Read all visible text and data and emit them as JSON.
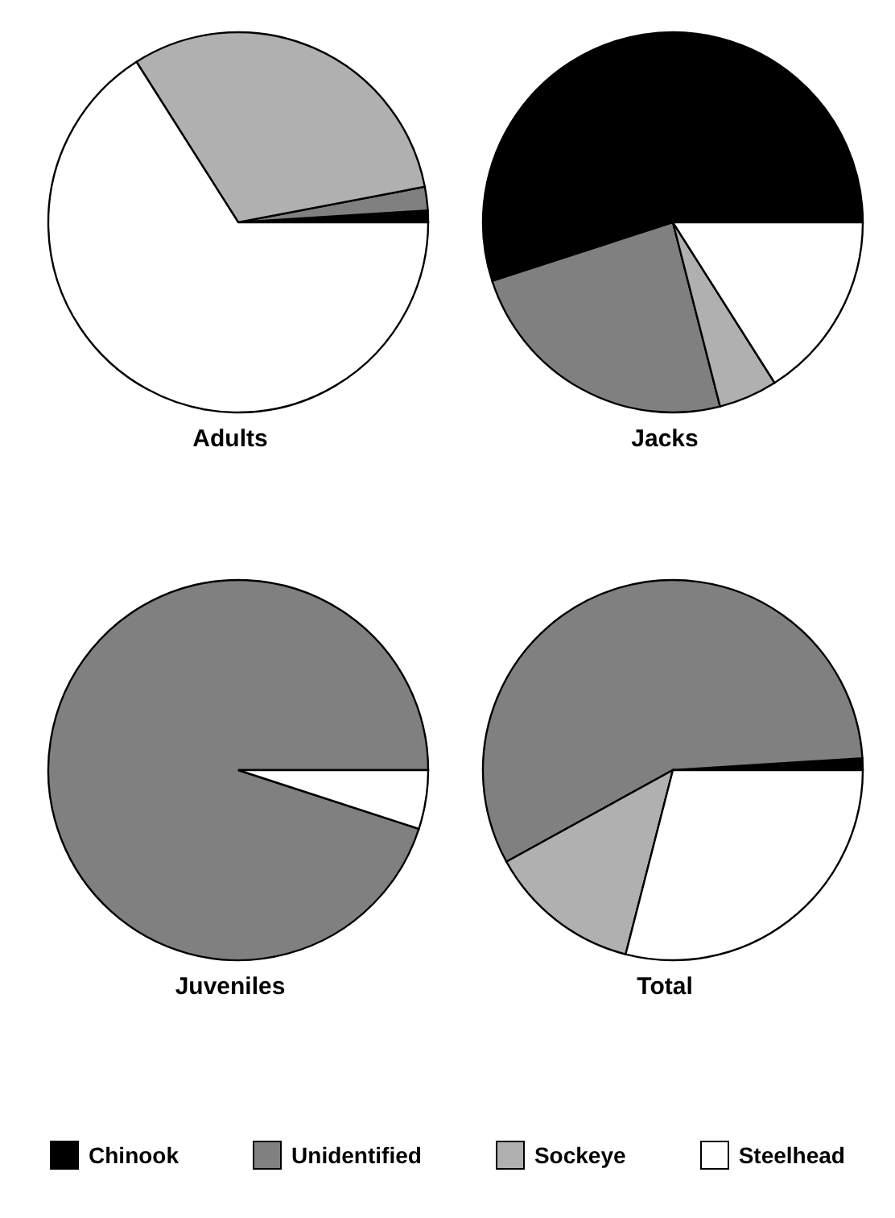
{
  "chart_data": [
    {
      "type": "pie",
      "title": "Adults",
      "categories": [
        "Chinook",
        "Unidentified",
        "Sockeye",
        "Steelhead"
      ],
      "values": [
        1,
        2,
        31,
        66
      ],
      "colors": [
        "#000000",
        "#808080",
        "#b0b0b0",
        "#ffffff"
      ],
      "legend": "bottom"
    },
    {
      "type": "pie",
      "title": "Jacks",
      "categories": [
        null,
        null,
        null,
        null
      ],
      "values": [
        55,
        24,
        5,
        16
      ],
      "colors": [
        "#000000",
        "#808080",
        "#b0b0b0",
        "#ffffff"
      ]
    },
    {
      "type": "pie",
      "title": "Juveniles",
      "categories": [
        null,
        null,
        null,
        null
      ],
      "values": [
        0,
        95,
        0,
        5
      ],
      "colors": [
        "#000000",
        "#808080",
        "#b0b0b0",
        "#ffffff"
      ]
    },
    {
      "type": "pie",
      "title": "Total",
      "categories": [
        null,
        null,
        null,
        null
      ],
      "values": [
        1,
        57,
        13,
        29
      ],
      "colors": [
        "#000000",
        "#808080",
        "#b0b0b0",
        "#ffffff"
      ]
    }
  ]
}
